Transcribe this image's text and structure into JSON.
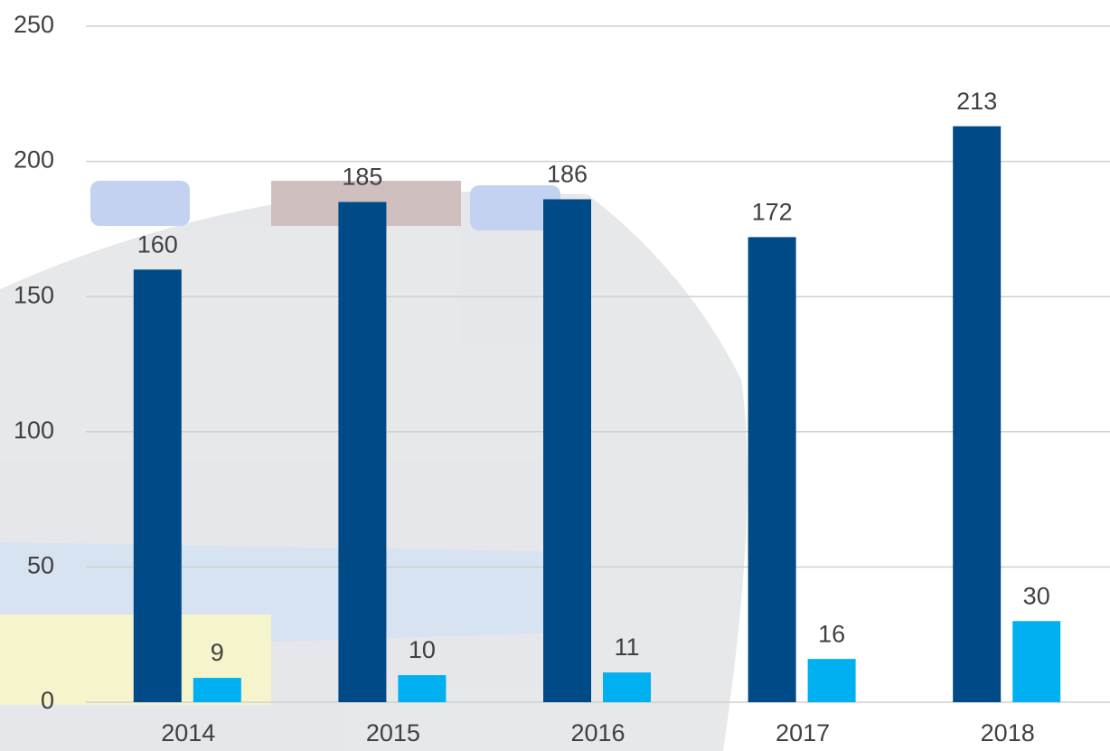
{
  "chart_data": {
    "type": "bar",
    "categories": [
      "2014",
      "2015",
      "2016",
      "2017",
      "2018"
    ],
    "series": [
      {
        "color": "#004a87",
        "values": [
          160,
          185,
          186,
          172,
          213
        ]
      },
      {
        "color": "#00b0f0",
        "values": [
          9,
          10,
          11,
          16,
          30
        ]
      }
    ],
    "ylim": [
      0,
      250
    ],
    "yticks": [
      0,
      50,
      100,
      150,
      200,
      250
    ],
    "grid": true
  }
}
